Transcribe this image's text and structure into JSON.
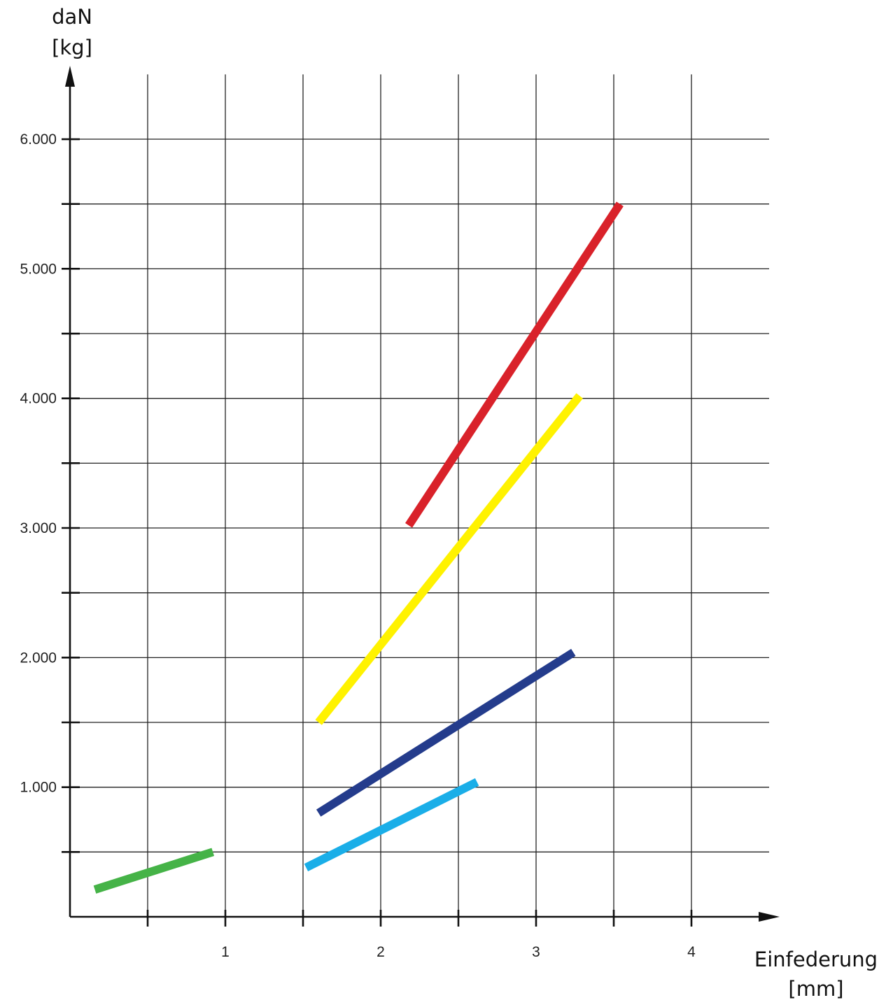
{
  "chart_data": {
    "type": "line",
    "ylabel_line1": "daN",
    "ylabel_line2": "[kg]",
    "xlabel_line1": "Einfederung",
    "xlabel_line2": "[mm]",
    "xlim": [
      0,
      4.5
    ],
    "ylim": [
      0,
      6500
    ],
    "x_ticks": [
      {
        "value": 0.5,
        "label": ""
      },
      {
        "value": 1,
        "label": "1"
      },
      {
        "value": 1.5,
        "label": ""
      },
      {
        "value": 2,
        "label": "2"
      },
      {
        "value": 2.5,
        "label": ""
      },
      {
        "value": 3,
        "label": "3"
      },
      {
        "value": 3.5,
        "label": ""
      },
      {
        "value": 4,
        "label": "4"
      }
    ],
    "y_ticks": [
      {
        "value": 500,
        "label": ""
      },
      {
        "value": 1000,
        "label": "1.000"
      },
      {
        "value": 1500,
        "label": ""
      },
      {
        "value": 2000,
        "label": "2.000"
      },
      {
        "value": 2500,
        "label": ""
      },
      {
        "value": 3000,
        "label": "3.000"
      },
      {
        "value": 3500,
        "label": ""
      },
      {
        "value": 4000,
        "label": "4.000"
      },
      {
        "value": 4500,
        "label": ""
      },
      {
        "value": 5000,
        "label": "5.000"
      },
      {
        "value": 5500,
        "label": ""
      },
      {
        "value": 6000,
        "label": "6.000"
      }
    ],
    "grid": true,
    "grid_x_max": 4.5,
    "grid_y_max": 6000,
    "series": [
      {
        "color": "#45b347",
        "points": [
          [
            0.16,
            210
          ],
          [
            0.92,
            500
          ]
        ]
      },
      {
        "color": "#1aaee8",
        "points": [
          [
            1.52,
            380
          ],
          [
            2.62,
            1040
          ]
        ]
      },
      {
        "color": "#243c8c",
        "points": [
          [
            1.6,
            800
          ],
          [
            3.24,
            2040
          ]
        ]
      },
      {
        "color": "#fff200",
        "points": [
          [
            1.6,
            1500
          ],
          [
            3.28,
            4020
          ]
        ]
      },
      {
        "color": "#d9222a",
        "points": [
          [
            2.18,
            3020
          ],
          [
            3.54,
            5500
          ]
        ]
      }
    ]
  }
}
